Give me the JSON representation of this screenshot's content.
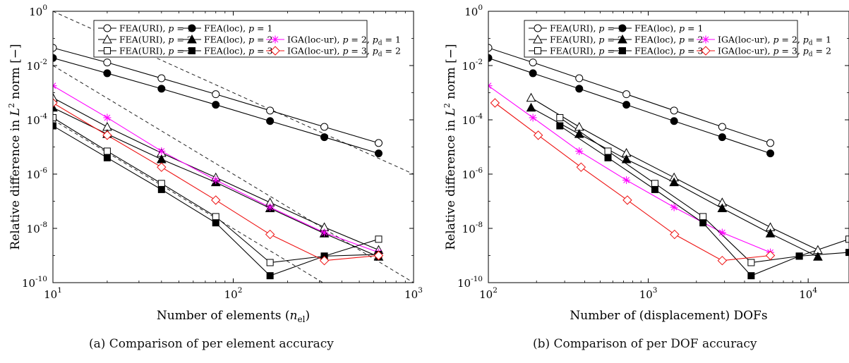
{
  "captions": {
    "a": "(a) Comparison of per element accuracy",
    "b": "(b) Comparison of per DOF accuracy"
  },
  "colors": {
    "black": "#000000",
    "magenta": "#ff00ff",
    "red": "#ee1111",
    "dashed": "#222222"
  },
  "chart_data": [
    {
      "type": "line",
      "xscale": "log",
      "yscale": "log",
      "xlim": [
        10,
        1000
      ],
      "ylim": [
        1e-10,
        1
      ],
      "xticks": [
        {
          "v": 10,
          "label": "10"
        },
        {
          "v": 100,
          "label": "10"
        },
        {
          "v": 1000,
          "label": "10"
        }
      ],
      "xtick_exps": [
        "1",
        "2",
        "3"
      ],
      "yticks": [
        {
          "v": 1,
          "e": "0"
        },
        {
          "v": 0.01,
          "e": "-2"
        },
        {
          "v": 0.0001,
          "e": "-4"
        },
        {
          "v": 1e-06,
          "e": "-6"
        },
        {
          "v": 1e-08,
          "e": "-8"
        },
        {
          "v": 1e-10,
          "e": "-10"
        }
      ],
      "xlabel_main": "Number of elements (",
      "xlabel_var": "n",
      "xlabel_sub": "el",
      "xlabel_end": ")",
      "ylabel_main": "Relative difference in ",
      "ylabel_norm": "L",
      "ylabel_sup": "2",
      "ylabel_end": " norm [−]",
      "grid": false,
      "legend_position": "top-right",
      "reference_lines": [
        {
          "x": [
            10,
            1000
          ],
          "y": [
            1.0,
            1e-06
          ]
        },
        {
          "x": [
            10,
            1000
          ],
          "y": [
            0.01,
            1e-10
          ]
        },
        {
          "x": [
            10,
            320
          ],
          "y": [
            0.0001,
            9.3e-11
          ]
        }
      ],
      "series": [
        {
          "name": "FEA(URI), p = 1",
          "marker": "circle-open",
          "color": "#000000",
          "x": [
            10,
            20,
            40,
            80,
            160,
            320,
            640
          ],
          "y": [
            0.045,
            0.013,
            0.0034,
            0.00088,
            0.00022,
            5.5e-05,
            1.4e-05
          ]
        },
        {
          "name": "FEA(loc), p = 1",
          "marker": "circle-filled",
          "color": "#000000",
          "x": [
            10,
            20,
            40,
            80,
            160,
            320,
            640
          ],
          "y": [
            0.019,
            0.0052,
            0.0014,
            0.00036,
            9e-05,
            2.3e-05,
            5.8e-06
          ]
        },
        {
          "name": "FEA(URI), p = 2",
          "marker": "triangle-open",
          "color": "#000000",
          "x": [
            10,
            20,
            40,
            80,
            160,
            320,
            640
          ],
          "y": [
            0.00065,
            5.5e-05,
            6e-06,
            7.5e-07,
            9e-08,
            1.1e-08,
            1.6e-09
          ]
        },
        {
          "name": "FEA(loc), p = 2",
          "marker": "triangle-filled",
          "color": "#000000",
          "x": [
            10,
            20,
            40,
            80,
            160,
            320,
            640
          ],
          "y": [
            0.00028,
            3e-05,
            3.5e-06,
            5e-07,
            5.5e-08,
            6.5e-09,
            9e-10
          ]
        },
        {
          "name": "IGA(loc-ur), p = 2, p_d = 1",
          "marker": "asterisk",
          "color": "#ff00ff",
          "x": [
            10,
            20,
            40,
            80,
            160,
            320,
            640
          ],
          "y": [
            0.0018,
            0.00012,
            7e-06,
            6e-07,
            6e-08,
            7e-09,
            1.3e-09
          ]
        },
        {
          "name": "FEA(URI), p = 3",
          "marker": "square-open",
          "color": "#000000",
          "x": [
            10,
            20,
            40,
            80,
            160,
            320,
            640
          ],
          "y": [
            0.00012,
            7e-06,
            4.5e-07,
            2.7e-08,
            5.5e-10,
            9.5e-10,
            4e-09
          ]
        },
        {
          "name": "FEA(loc), p = 3",
          "marker": "square-filled",
          "color": "#000000",
          "x": [
            10,
            20,
            40,
            80,
            160,
            320,
            640
          ],
          "y": [
            6e-05,
            4e-06,
            2.7e-07,
            1.6e-08,
            1.8e-10,
            9.5e-10,
            1.1e-09
          ]
        },
        {
          "name": "IGA(loc-ur), p = 3, p_d = 2",
          "marker": "diamond-open",
          "color": "#ee1111",
          "x": [
            10,
            20,
            40,
            80,
            160,
            320,
            640
          ],
          "y": [
            0.00042,
            2.7e-05,
            1.8e-06,
            1.1e-07,
            6e-09,
            6.5e-10,
            1e-09
          ]
        }
      ]
    },
    {
      "type": "line",
      "xscale": "log",
      "yscale": "log",
      "xlim": [
        100,
        18000
      ],
      "ylim": [
        1e-10,
        1
      ],
      "xticks": [
        {
          "v": 100,
          "label": "10"
        },
        {
          "v": 1000,
          "label": "10"
        },
        {
          "v": 10000,
          "label": "10"
        }
      ],
      "xtick_exps": [
        "2",
        "3",
        "4"
      ],
      "yticks": [
        {
          "v": 1,
          "e": "0"
        },
        {
          "v": 0.01,
          "e": "-2"
        },
        {
          "v": 0.0001,
          "e": "-4"
        },
        {
          "v": 1e-06,
          "e": "-6"
        },
        {
          "v": 1e-08,
          "e": "-8"
        },
        {
          "v": 1e-10,
          "e": "-10"
        }
      ],
      "xlabel_main": "Number of (displacement) DOFs",
      "ylabel_main": "Relative difference in ",
      "ylabel_norm": "L",
      "ylabel_sup": "2",
      "ylabel_end": " norm [−]",
      "grid": false,
      "legend_position": "top-right",
      "series": [
        {
          "name": "FEA(URI), p = 1",
          "marker": "circle-open",
          "color": "#000000",
          "x": [
            100,
            190,
            370,
            730,
            1450,
            2900,
            5800
          ],
          "y": [
            0.045,
            0.013,
            0.0034,
            0.00088,
            0.00022,
            5.5e-05,
            1.4e-05
          ]
        },
        {
          "name": "FEA(loc), p = 1",
          "marker": "circle-filled",
          "color": "#000000",
          "x": [
            100,
            190,
            370,
            730,
            1450,
            2900,
            5800
          ],
          "y": [
            0.019,
            0.0052,
            0.0014,
            0.00036,
            9e-05,
            2.3e-05,
            5.8e-06
          ]
        },
        {
          "name": "FEA(URI), p = 2",
          "marker": "triangle-open",
          "color": "#000000",
          "x": [
            185,
            370,
            730,
            1450,
            2900,
            5800,
            11500
          ],
          "y": [
            0.00065,
            5.5e-05,
            6e-06,
            7.5e-07,
            9e-08,
            1.1e-08,
            1.6e-09
          ]
        },
        {
          "name": "FEA(loc), p = 2",
          "marker": "triangle-filled",
          "color": "#000000",
          "x": [
            185,
            370,
            730,
            1450,
            2900,
            5800,
            11500
          ],
          "y": [
            0.00028,
            3e-05,
            3.5e-06,
            5e-07,
            5.5e-08,
            6.5e-09,
            9e-10
          ]
        },
        {
          "name": "IGA(loc-ur), p = 2, p_d = 1",
          "marker": "asterisk",
          "color": "#ff00ff",
          "x": [
            100,
            190,
            370,
            730,
            1450,
            2900,
            5800
          ],
          "y": [
            0.0018,
            0.00012,
            7e-06,
            6e-07,
            6e-08,
            7e-09,
            1.3e-09
          ]
        },
        {
          "name": "FEA(URI), p = 3",
          "marker": "square-open",
          "color": "#000000",
          "x": [
            280,
            560,
            1100,
            2200,
            4400,
            8800,
            18000
          ],
          "y": [
            0.00012,
            7e-06,
            4.5e-07,
            2.7e-08,
            5.5e-10,
            9.5e-10,
            4e-09
          ]
        },
        {
          "name": "FEA(loc), p = 3",
          "marker": "square-filled",
          "color": "#000000",
          "x": [
            280,
            560,
            1100,
            2200,
            4400,
            8800,
            18000
          ],
          "y": [
            6e-05,
            4e-06,
            2.7e-07,
            1.6e-08,
            1.8e-10,
            9.5e-10,
            1.3e-09
          ]
        },
        {
          "name": "IGA(loc-ur), p = 3, p_d = 2",
          "marker": "diamond-open",
          "color": "#ee1111",
          "x": [
            110,
            205,
            380,
            740,
            1460,
            2900,
            5800
          ],
          "y": [
            0.00042,
            2.7e-05,
            1.8e-06,
            1.1e-07,
            6e-09,
            6.5e-10,
            1e-09
          ]
        }
      ]
    }
  ]
}
